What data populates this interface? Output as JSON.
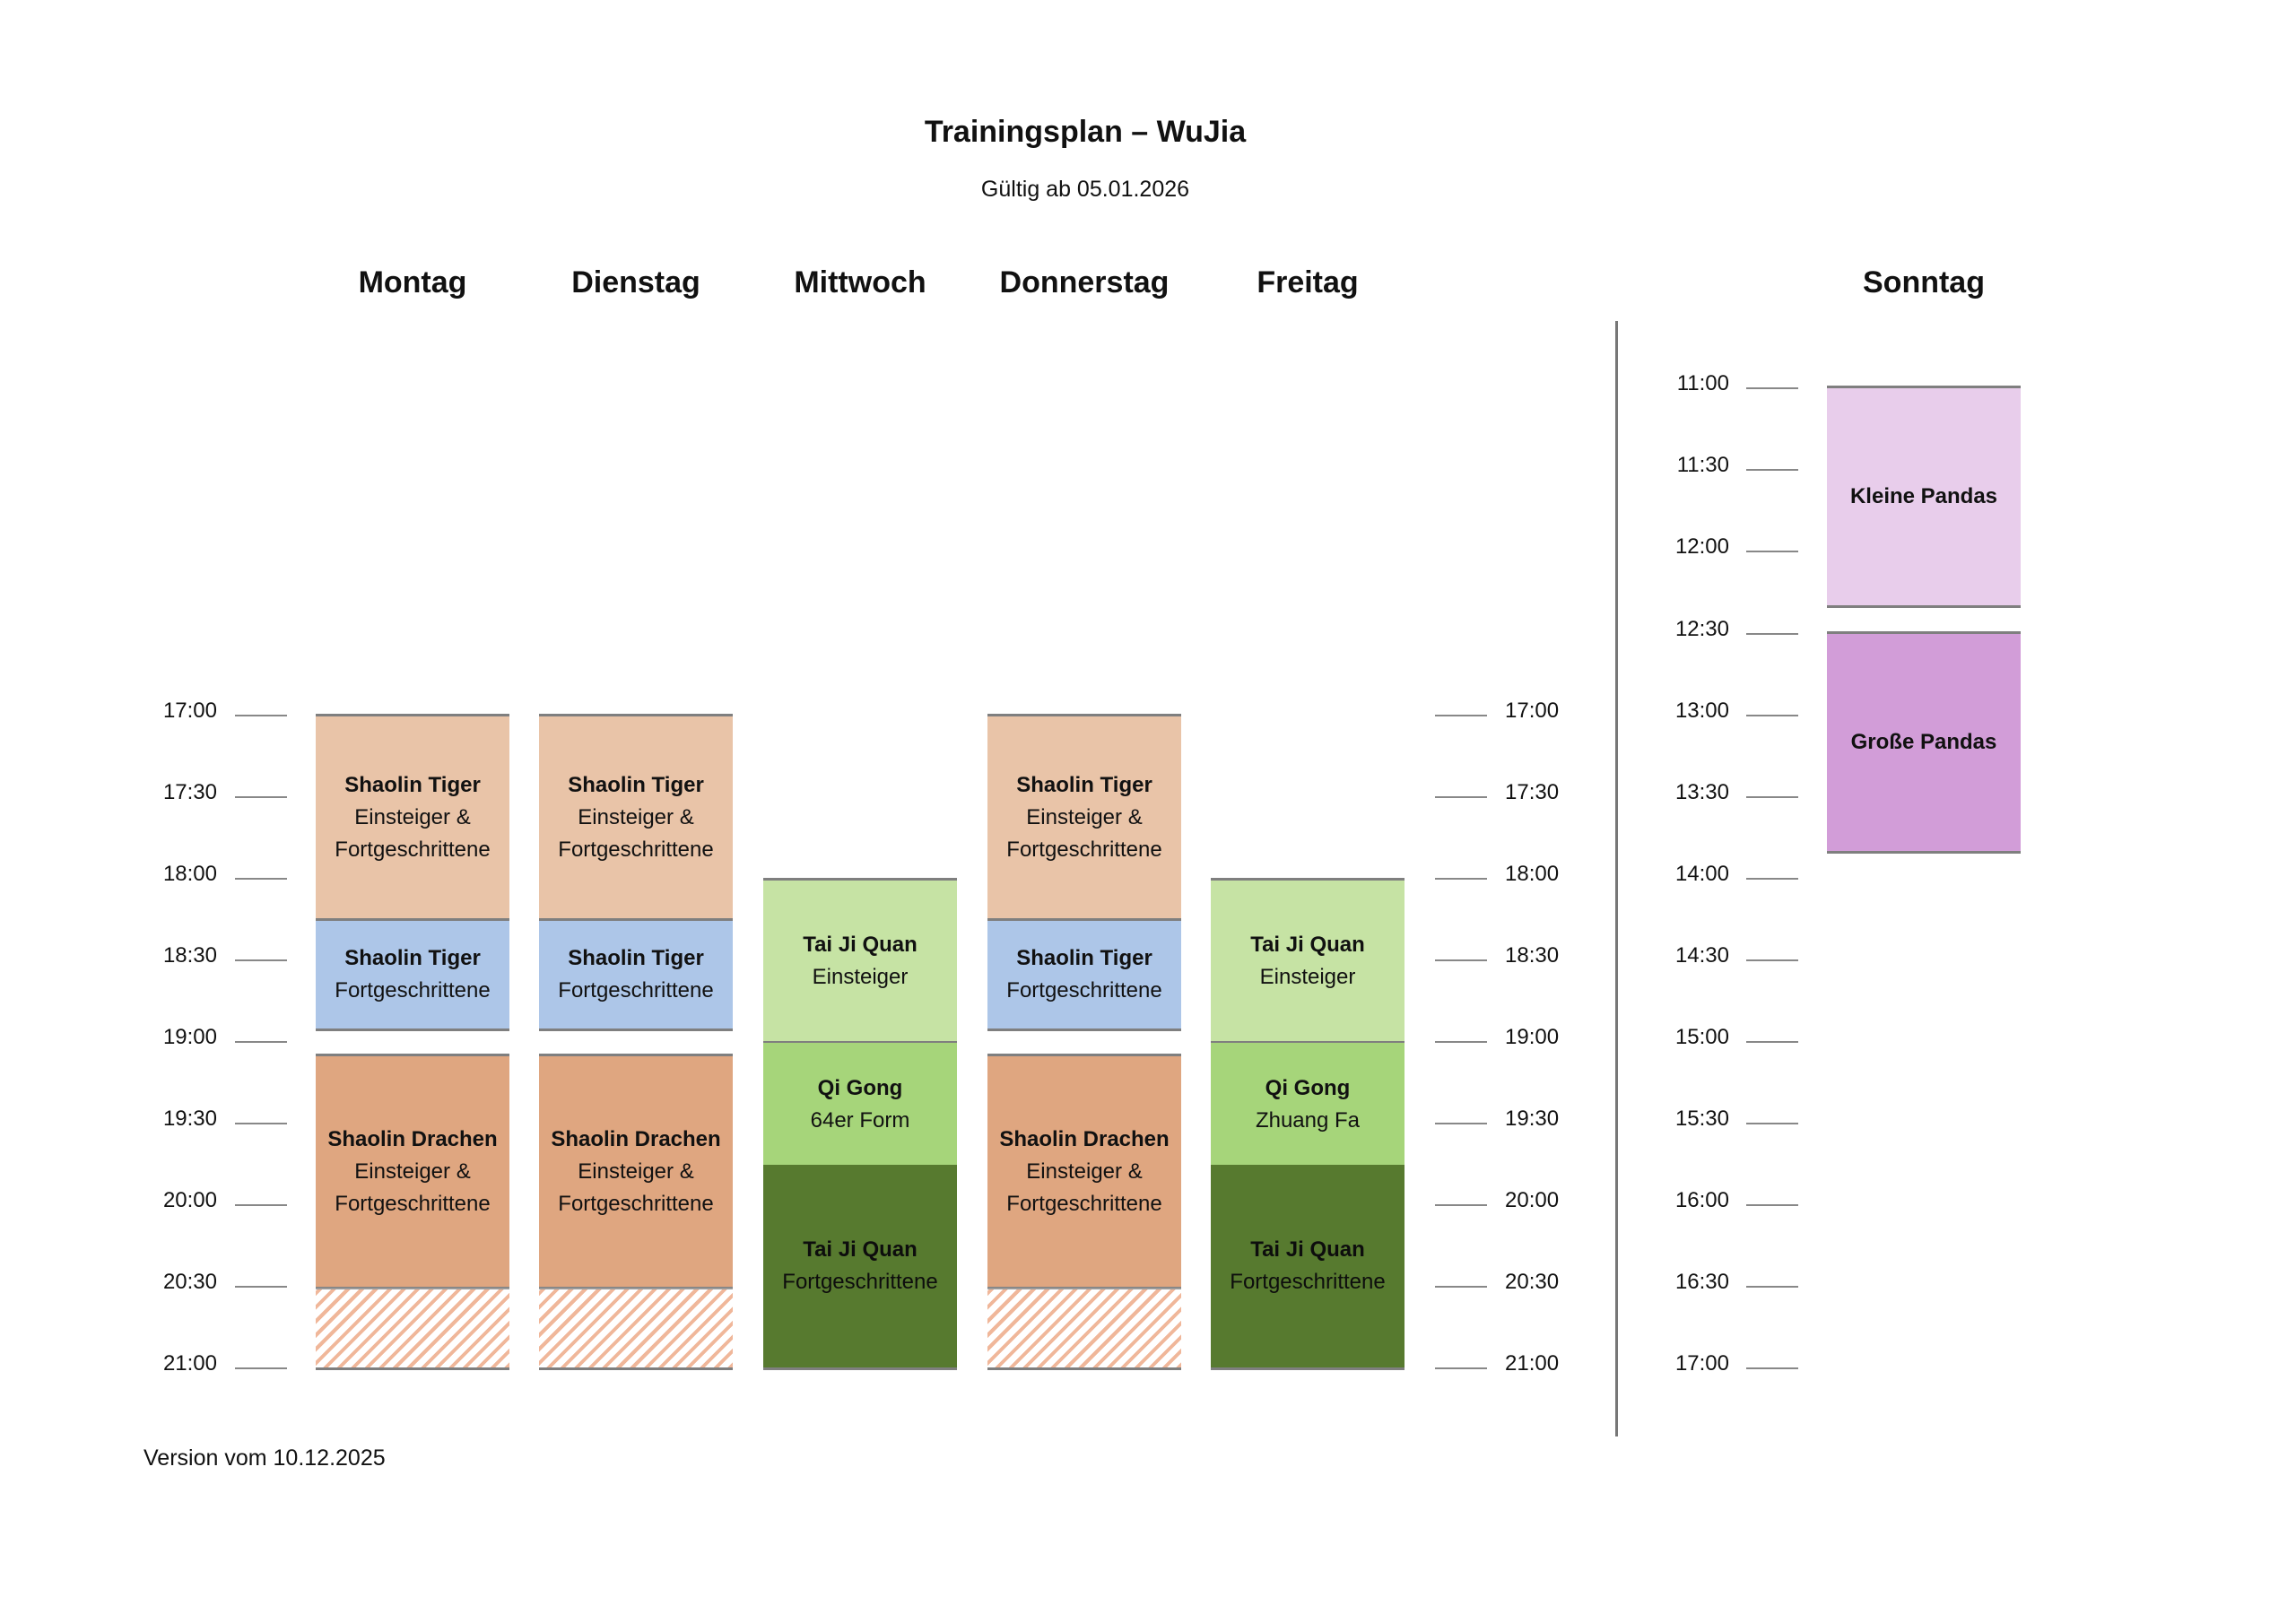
{
  "title": "Trainingsplan – WuJia",
  "subtitle": "Gültig ab 05.01.2026",
  "footer": "Version vom 10.12.2025",
  "colors": {
    "tiger_ef": "#e9c4a8",
    "tiger_f": "#adc6e8",
    "drachen": "#dfa680",
    "taiji_e": "#c6e3a4",
    "qigong": "#a6d57a",
    "taiji_f": "#577a2f",
    "kleine_pandas": "#e8cdeb",
    "grosse_pandas": "#d29dd8"
  },
  "days": {
    "mon": "Montag",
    "tue": "Dienstag",
    "wed": "Mittwoch",
    "thu": "Donnerstag",
    "fri": "Freitag",
    "sun": "Sonntag"
  },
  "weekday_times": [
    "17:00",
    "17:30",
    "18:00",
    "18:30",
    "19:00",
    "19:30",
    "20:00",
    "20:30",
    "21:00"
  ],
  "sunday_times": [
    "11:00",
    "11:30",
    "12:00",
    "12:30",
    "13:00",
    "13:30",
    "14:00",
    "14:30",
    "15:00",
    "15:30",
    "16:00",
    "16:30",
    "17:00"
  ],
  "classes": {
    "tiger_ef": {
      "name": "Shaolin Tiger",
      "line1": "Einsteiger &",
      "line2": "Fortgeschrittene"
    },
    "tiger_f": {
      "name": "Shaolin Tiger",
      "line1": "Fortgeschrittene"
    },
    "drachen": {
      "name": "Shaolin Drachen",
      "line1": "Einsteiger &",
      "line2": "Fortgeschrittene"
    },
    "taiji_e": {
      "name": "Tai Ji Quan",
      "line1": "Einsteiger"
    },
    "qigong_wed": {
      "name": "Qi Gong",
      "line1": "64er Form"
    },
    "qigong_fri": {
      "name": "Qi Gong",
      "line1": "Zhuang Fa"
    },
    "taiji_f": {
      "name": "Tai Ji Quan",
      "line1": "Fortgeschrittene"
    },
    "kleine_pandas": {
      "name": "Kleine Pandas"
    },
    "grosse_pandas": {
      "name": "Große Pandas"
    }
  }
}
